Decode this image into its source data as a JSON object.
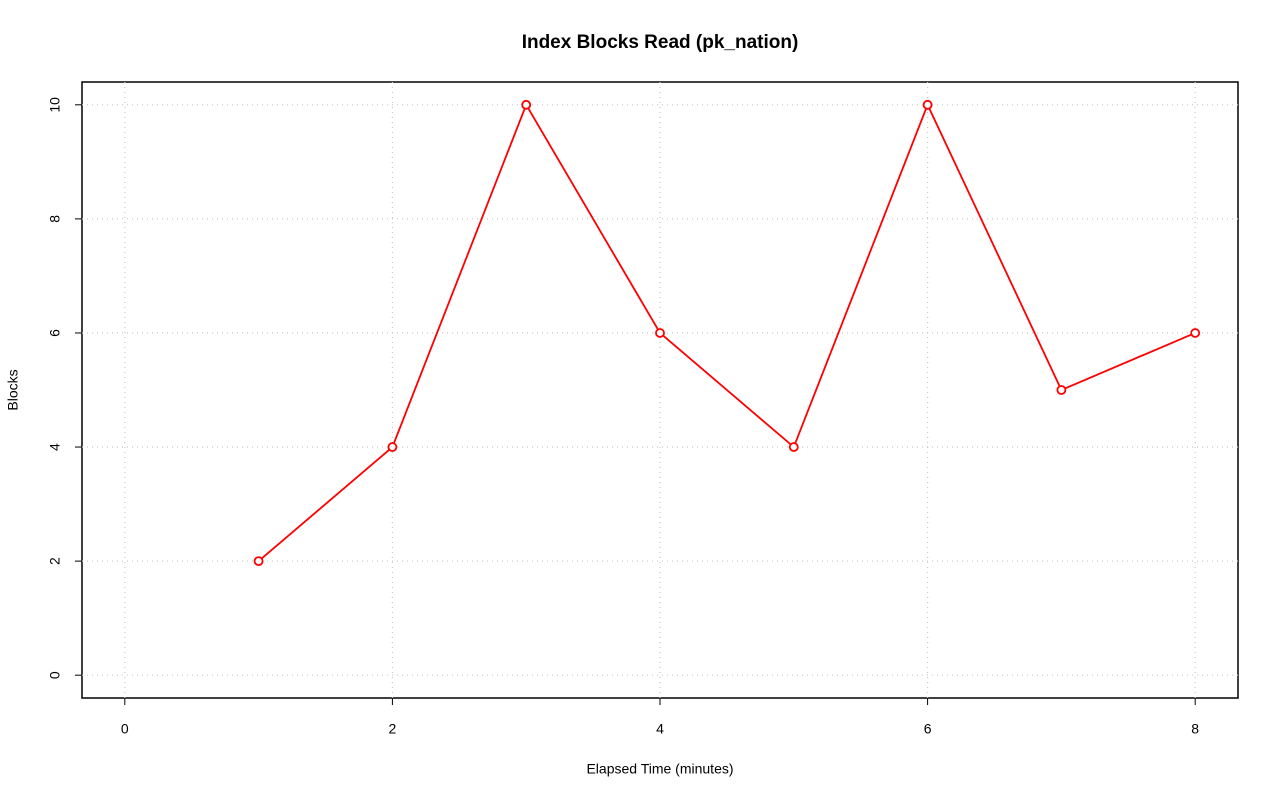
{
  "chart_data": {
    "type": "line",
    "title": "Index Blocks Read (pk_nation)",
    "x_label": "Elapsed Time (minutes)",
    "y_label": "Blocks",
    "x": [
      1,
      2,
      3,
      4,
      5,
      6,
      7,
      8
    ],
    "series": [
      {
        "name": "Blocks",
        "color": "#ff0000",
        "values": [
          2,
          4,
          10,
          6,
          4,
          10,
          5,
          6
        ]
      }
    ],
    "xlim": [
      -0.32,
      8.32
    ],
    "ylim": [
      -0.4,
      10.4
    ],
    "xticks": [
      0,
      2,
      4,
      6,
      8
    ],
    "yticks": [
      0,
      2,
      4,
      6,
      8,
      10
    ],
    "grid": true
  }
}
